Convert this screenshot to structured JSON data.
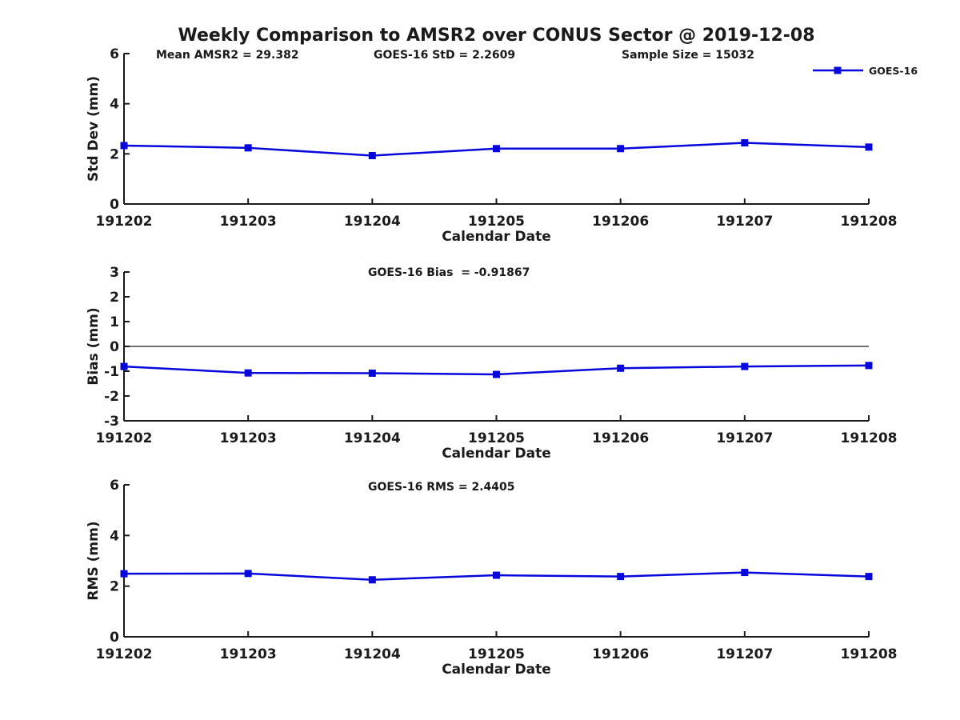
{
  "title": "Weekly Comparison to AMSR2 over CONUS Sector @ 2019-12-08",
  "legend": {
    "label": "GOES-16"
  },
  "colors": {
    "line": "#0707DC",
    "marker": "#0707DC",
    "axis": "#1a1a1a",
    "text": "#1a1a1a",
    "zero_line": "#1a1a1a",
    "background": "#ffffff"
  },
  "chart_data": [
    {
      "type": "line",
      "title": "",
      "ylabel": "Std Dev (mm)",
      "xlabel": "Calendar Date",
      "categories": [
        "191202",
        "191203",
        "191204",
        "191205",
        "191206",
        "191207",
        "191208"
      ],
      "series": [
        {
          "name": "GOES-16",
          "values": [
            2.33,
            2.24,
            1.93,
            2.21,
            2.21,
            2.44,
            2.27
          ]
        }
      ],
      "ylim": [
        0,
        6
      ],
      "yticks": [
        0,
        2,
        4,
        6
      ],
      "grid": false,
      "zero_line": false,
      "legend_position": "top-right-outside",
      "annotations": [
        "Mean AMSR2 = 29.382",
        "GOES-16 StD = 2.2609",
        "Sample Size = 15032"
      ]
    },
    {
      "type": "line",
      "title": "",
      "ylabel": "Bias (mm)",
      "xlabel": "Calendar Date",
      "categories": [
        "191202",
        "191203",
        "191204",
        "191205",
        "191206",
        "191207",
        "191208"
      ],
      "series": [
        {
          "name": "GOES-16",
          "values": [
            -0.81,
            -1.07,
            -1.08,
            -1.13,
            -0.88,
            -0.81,
            -0.77
          ]
        }
      ],
      "ylim": [
        -3,
        3
      ],
      "yticks": [
        -3,
        -2,
        -1,
        0,
        1,
        2,
        3
      ],
      "grid": false,
      "zero_line": true,
      "legend_position": "none",
      "annotations": [
        "GOES-16 Bias  = -0.91867"
      ]
    },
    {
      "type": "line",
      "title": "",
      "ylabel": "RMS (mm)",
      "xlabel": "Calendar Date",
      "categories": [
        "191202",
        "191203",
        "191204",
        "191205",
        "191206",
        "191207",
        "191208"
      ],
      "series": [
        {
          "name": "GOES-16",
          "values": [
            2.49,
            2.5,
            2.25,
            2.43,
            2.38,
            2.54,
            2.38
          ]
        }
      ],
      "ylim": [
        0,
        6
      ],
      "yticks": [
        0,
        2,
        4,
        6
      ],
      "grid": false,
      "zero_line": false,
      "legend_position": "none",
      "annotations": [
        "GOES-16 RMS = 2.4405"
      ]
    }
  ]
}
